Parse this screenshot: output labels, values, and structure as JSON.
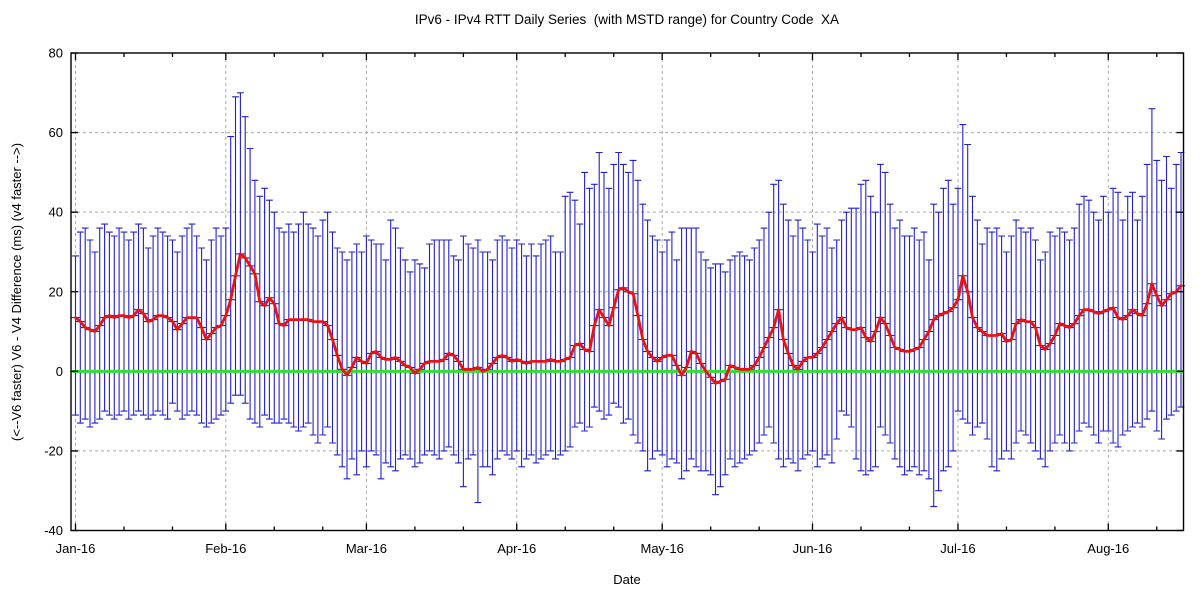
{
  "page": {
    "background": "#ffffff",
    "text_color": "#000000"
  },
  "chart_data": {
    "type": "line",
    "subtype": "daily mean with error bars (MSTD range)",
    "title": "IPv6 - IPv4 RTT Daily Series  (with MSTD range) for Country Code  XA",
    "xlabel": "Date",
    "ylabel": "(<--V6 faster) V6 - V4 Difference (ms) (v4 faster -->)",
    "ylim": [
      -40,
      80
    ],
    "ytick_values": [
      -40,
      -20,
      0,
      20,
      40,
      60,
      80
    ],
    "ytick_labels": [
      "-40",
      "-20",
      "0",
      "20",
      "40",
      "60",
      "80"
    ],
    "grid": "dashed gray at major x (monthly) and major y ticks",
    "legend_position": "none",
    "x_unit": "day",
    "x_start_date": "2016-01-01",
    "months": [
      {
        "label": "Jan-16",
        "days": 31
      },
      {
        "label": "Feb-16",
        "days": 29
      },
      {
        "label": "Mar-16",
        "days": 31
      },
      {
        "label": "Apr-16",
        "days": 30
      },
      {
        "label": "May-16",
        "days": 31
      },
      {
        "label": "Jun-16",
        "days": 30
      },
      {
        "label": "Jul-16",
        "days": 31
      },
      {
        "label": "Aug-16",
        "days": 16
      }
    ],
    "zero_line_color": "#33dd33",
    "grid_color": "#aaaaaa",
    "axis_color": "#000000",
    "series": [
      {
        "name": "daily mean V6-V4 RTT difference (ms)",
        "color": "#ee1111",
        "style": "thick line with tick marker at each point",
        "values": [
          13.5,
          12.5,
          11,
          10.5,
          10,
          11.5,
          13.5,
          14,
          13.5,
          14,
          14,
          13.5,
          14,
          15.5,
          14.5,
          12.5,
          13,
          14,
          14,
          13.5,
          12.5,
          10.5,
          12,
          13.5,
          13.5,
          13.5,
          11,
          8,
          9.5,
          11,
          11.5,
          14,
          18,
          24,
          29.5,
          28.5,
          26.5,
          24.5,
          17.5,
          16.5,
          18.5,
          17,
          12,
          11.5,
          13,
          13,
          13,
          13,
          13,
          12.5,
          12.5,
          12.5,
          11.5,
          8,
          4,
          0.5,
          -1,
          1,
          3.5,
          2.5,
          2,
          4.5,
          5,
          3.5,
          3,
          3,
          3.5,
          2.5,
          1.5,
          1,
          -0.5,
          0.5,
          2,
          2.5,
          2.5,
          2.5,
          3,
          4.5,
          4,
          2.5,
          0.5,
          0.5,
          0.5,
          1,
          0,
          0.5,
          2,
          3.5,
          4,
          3.5,
          2.5,
          3,
          2.5,
          2,
          2.5,
          2.5,
          2.5,
          2.5,
          3,
          2.5,
          2.5,
          3,
          3.5,
          6.5,
          7,
          5.5,
          5,
          11.5,
          15.5,
          13.5,
          11.5,
          16,
          20.5,
          21,
          20,
          19.5,
          14,
          8,
          5,
          3.5,
          2.5,
          3.5,
          4,
          4,
          1.5,
          -1,
          1,
          5,
          4.5,
          2,
          0,
          -1.5,
          -3,
          -2.5,
          -2,
          1.5,
          1,
          0.5,
          0.5,
          0.5,
          1.5,
          3.5,
          6,
          8.5,
          11,
          15.5,
          8,
          4.5,
          1.5,
          0.5,
          2.5,
          3.5,
          3.5,
          4.5,
          6,
          8,
          10,
          12,
          13.5,
          11,
          10.5,
          10.5,
          11,
          8.5,
          7.5,
          10,
          13.5,
          12,
          9,
          6,
          5.5,
          5,
          5,
          5.5,
          6,
          8,
          10,
          13,
          14,
          14.5,
          15,
          16,
          18,
          24,
          20,
          13.5,
          11,
          10,
          9,
          9,
          9,
          9.5,
          7.5,
          8,
          12,
          13,
          12.5,
          12.5,
          11,
          6.5,
          5.5,
          7,
          9,
          12,
          11.5,
          11,
          12,
          14,
          15.5,
          15.5,
          15,
          14.5,
          15,
          15.5,
          16,
          13.5,
          13,
          14,
          15.5,
          14.5,
          14,
          17,
          22,
          19,
          16.5,
          18,
          19.5,
          20,
          21.5
        ]
      },
      {
        "name": "mean + MSTD (upper range, ms)",
        "color": "#2222cc",
        "style": "error-bar top cap",
        "values": [
          29,
          35,
          36,
          33,
          30,
          36,
          37,
          35,
          34,
          36,
          35,
          33,
          35,
          37,
          36,
          31,
          34,
          36,
          35,
          34,
          33,
          30,
          34,
          36,
          37,
          34,
          31,
          28,
          33,
          36,
          34,
          36,
          59,
          69,
          70,
          64,
          56,
          48,
          44,
          46,
          43,
          40,
          36,
          35,
          37,
          35,
          37,
          40,
          37,
          36,
          34,
          38,
          40,
          35,
          31,
          30,
          28,
          30,
          32,
          30,
          34,
          33,
          32,
          32,
          28,
          38,
          36,
          31,
          28,
          25,
          28,
          27,
          26,
          32,
          33,
          33,
          33,
          33,
          29,
          28,
          34,
          32,
          31,
          33,
          30,
          30,
          28,
          33,
          34,
          33,
          31,
          33,
          32,
          29,
          32,
          29,
          32,
          33,
          34,
          30,
          30,
          44,
          45,
          43,
          37,
          50,
          46,
          47,
          55,
          50,
          46,
          52,
          55,
          52,
          50,
          53,
          48,
          42,
          38,
          34,
          33,
          30,
          33,
          35,
          28,
          36,
          36,
          36,
          36,
          30,
          28,
          26,
          27,
          27,
          25,
          28,
          29,
          30,
          29,
          28,
          31,
          33,
          36,
          40,
          47,
          48,
          42,
          38,
          34,
          38,
          36,
          33,
          30,
          37,
          34,
          36,
          31,
          33,
          38,
          40,
          41,
          41,
          47,
          48,
          44,
          40,
          52,
          50,
          42,
          36,
          38,
          34,
          34,
          36,
          33,
          35,
          28,
          42,
          40,
          46,
          48,
          42,
          46,
          62,
          57,
          44,
          38,
          32,
          36,
          35,
          36,
          34,
          30,
          34,
          38,
          36,
          35,
          36,
          33,
          28,
          30,
          35,
          34,
          36,
          35,
          33,
          36,
          42,
          44,
          43,
          40,
          38,
          44,
          40,
          46,
          45,
          38,
          44,
          45,
          38,
          44,
          52,
          66,
          53,
          48,
          54,
          46,
          52,
          55
        ]
      },
      {
        "name": "mean - MSTD (lower range, ms)",
        "color": "#2222cc",
        "style": "error-bar bottom cap",
        "values": [
          -11,
          -13,
          -12,
          -14,
          -13,
          -12,
          -10,
          -11,
          -12,
          -11,
          -10,
          -12,
          -11,
          -10,
          -11,
          -12,
          -11,
          -10,
          -11,
          -12,
          -8,
          -10,
          -12,
          -11,
          -10,
          -11,
          -13,
          -14,
          -13,
          -12,
          -11,
          -10,
          -8,
          -6,
          -6,
          -8,
          -12,
          -13,
          -14,
          -11,
          -12,
          -13,
          -13,
          -12,
          -13,
          -14,
          -15,
          -14,
          -13,
          -16,
          -18,
          -16,
          -14,
          -18,
          -21,
          -24,
          -27,
          -22,
          -26,
          -20,
          -24,
          -20,
          -21,
          -27,
          -23,
          -24,
          -25,
          -22,
          -21,
          -22,
          -24,
          -23,
          -21,
          -20,
          -21,
          -22,
          -20,
          -19,
          -21,
          -23,
          -29,
          -22,
          -21,
          -33,
          -24,
          -24,
          -26,
          -22,
          -20,
          -21,
          -22,
          -20,
          -24,
          -22,
          -21,
          -23,
          -22,
          -21,
          -20,
          -22,
          -21,
          -20,
          -19,
          -14,
          -13,
          -15,
          -14,
          -9,
          -10,
          -12,
          -11,
          -8,
          -9,
          -13,
          -12,
          -16,
          -18,
          -20,
          -25,
          -22,
          -20,
          -21,
          -24,
          -22,
          -23,
          -27,
          -25,
          -22,
          -24,
          -25,
          -25,
          -26,
          -31,
          -29,
          -26,
          -22,
          -24,
          -23,
          -22,
          -21,
          -20,
          -18,
          -16,
          -14,
          -18,
          -22,
          -24,
          -22,
          -23,
          -25,
          -22,
          -21,
          -20,
          -24,
          -22,
          -21,
          -23,
          -17,
          -10,
          -11,
          -14,
          -22,
          -25,
          -26,
          -25,
          -24,
          -14,
          -16,
          -18,
          -22,
          -24,
          -26,
          -25,
          -24,
          -26,
          -25,
          -27,
          -34,
          -30,
          -25,
          -24,
          -20,
          -10,
          -12,
          -13,
          -16,
          -14,
          -13,
          -17,
          -24,
          -25,
          -22,
          -20,
          -22,
          -18,
          -15,
          -16,
          -18,
          -20,
          -22,
          -24,
          -20,
          -18,
          -16,
          -18,
          -20,
          -18,
          -15,
          -13,
          -14,
          -16,
          -18,
          -15,
          -15,
          -18,
          -19,
          -16,
          -15,
          -14,
          -13,
          -14,
          -12,
          -10,
          -15,
          -17,
          -12,
          -11,
          -10,
          -9
        ]
      }
    ]
  }
}
